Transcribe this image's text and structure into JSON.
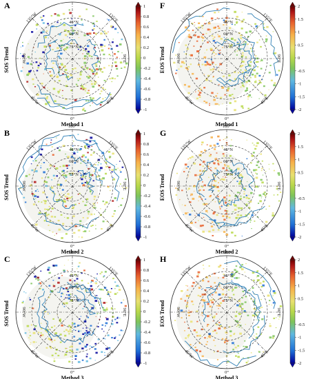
{
  "panels": [
    {
      "letter": "A",
      "ylabel": "SOS Trend",
      "method": "Method 1",
      "scale": "sos",
      "variant": 1
    },
    {
      "letter": "F",
      "ylabel": "EOS Trend",
      "method": "Method 1",
      "scale": "eos",
      "variant": 1
    },
    {
      "letter": "B",
      "ylabel": "SOS Trend",
      "method": "Method 2",
      "scale": "sos",
      "variant": 2
    },
    {
      "letter": "G",
      "ylabel": "EOS Trend",
      "method": "Method 2",
      "scale": "eos",
      "variant": 2
    },
    {
      "letter": "C",
      "ylabel": "SOS Trend",
      "method": "Method 3",
      "scale": "sos",
      "variant": 3
    },
    {
      "letter": "H",
      "ylabel": "EOS Trend",
      "method": "Method 3",
      "scale": "eos",
      "variant": 3
    }
  ],
  "map_labels": {
    "top": "180°",
    "bottom": "0°",
    "left": "90°W",
    "right": "90°E",
    "upper_left": "135°W",
    "upper_right": "135°E",
    "lower_left": "45°W",
    "lower_right": "45°E",
    "lat_46": "46°N",
    "lat_60": "60°N",
    "lat_75": "75°N"
  },
  "colorbars": {
    "sos": {
      "ticks": [
        "1",
        "0.8",
        "0.6",
        "0.4",
        "0.2",
        "0",
        "-0.2",
        "-0.4",
        "-0.6",
        "-0.8",
        "-1"
      ]
    },
    "eos": {
      "ticks": [
        "2",
        "1.5",
        "1",
        "0.5",
        "0",
        "-0.5",
        "-1",
        "-1.5",
        "-2"
      ]
    }
  },
  "colors": {
    "coast": "#2f7fb5",
    "grid": "#333333",
    "ramp": [
      "#00009a",
      "#1f6fd6",
      "#5fb8e0",
      "#7ec45a",
      "#b8d84a",
      "#e8e070",
      "#f7b24a",
      "#e8622e",
      "#b01818",
      "#6a0000"
    ]
  }
}
